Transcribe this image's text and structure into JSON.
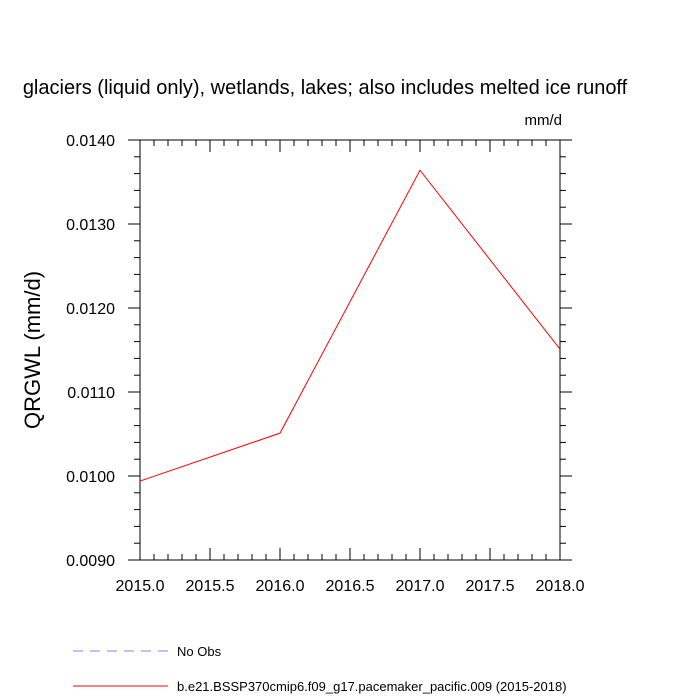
{
  "chart_data": {
    "type": "line",
    "title": "glaciers (liquid only), wetlands, lakes; also includes melted ice runoff",
    "units": "mm/d",
    "xlabel": "",
    "ylabel": "QRGWL  (mm/d)",
    "xlim": [
      2015.0,
      2018.0
    ],
    "ylim": [
      0.009,
      0.014
    ],
    "x_ticks": [
      "2015.0",
      "2015.5",
      "2016.0",
      "2016.5",
      "2017.0",
      "2017.5",
      "2018.0"
    ],
    "y_ticks": [
      "0.0090",
      "0.0100",
      "0.0110",
      "0.0120",
      "0.0130",
      "0.0140"
    ],
    "grid": false,
    "legend_position": "bottom",
    "series": [
      {
        "name": "No Obs",
        "color": "#8080ff",
        "dash": "dashed",
        "x": [],
        "y": []
      },
      {
        "name": "b.e21.BSSP370cmip6.f09_g17.pacemaker_pacific.009 (2015-2018)",
        "color": "#ff0000",
        "dash": "solid",
        "x": [
          2015.0,
          2016.0,
          2017.0,
          2018.0
        ],
        "y": [
          0.00994,
          0.01051,
          0.01364,
          0.01151
        ]
      }
    ]
  }
}
